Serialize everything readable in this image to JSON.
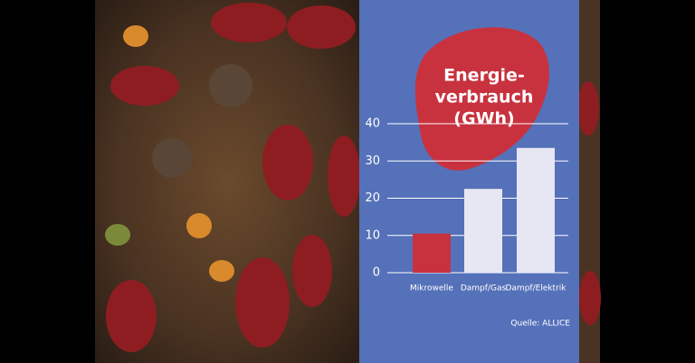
{
  "chart_data": {
    "type": "bar",
    "title_lines": [
      "Energie-",
      "verbrauch",
      "(GWh)"
    ],
    "categories": [
      "Mikrowelle",
      "Dampf/Gas",
      "Dampf/Elektrik"
    ],
    "values": [
      10.5,
      22.5,
      33.5
    ],
    "colors": [
      "#c8323f",
      "#e6e7f3",
      "#e6e7f3"
    ],
    "ylim": [
      0,
      40
    ],
    "yticks": [
      0,
      10,
      20,
      30,
      40
    ],
    "grid": true,
    "source": "Quelle: ALLICE"
  }
}
